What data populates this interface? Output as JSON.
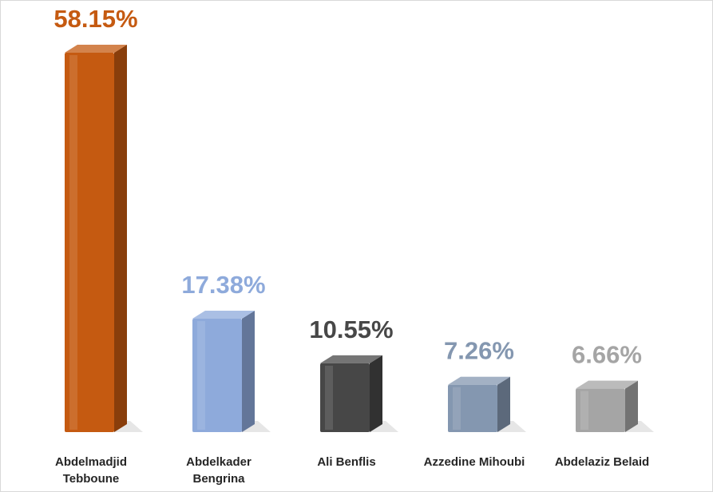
{
  "chart_data": {
    "type": "bar3d",
    "categories": [
      "Abdelmadjid Tebboune",
      "Abdelkader Bengrina",
      "Ali Benflis",
      "Azzedine Mihoubi",
      "Abdelaziz Belaid"
    ],
    "values": [
      58.15,
      17.38,
      10.55,
      7.26,
      6.66
    ],
    "value_labels": [
      "58.15%",
      "17.38%",
      "10.55%",
      "7.26%",
      "6.66%"
    ],
    "colors": [
      "#c55a11",
      "#8eaadb",
      "#474747",
      "#8497b0",
      "#a5a5a5"
    ]
  }
}
